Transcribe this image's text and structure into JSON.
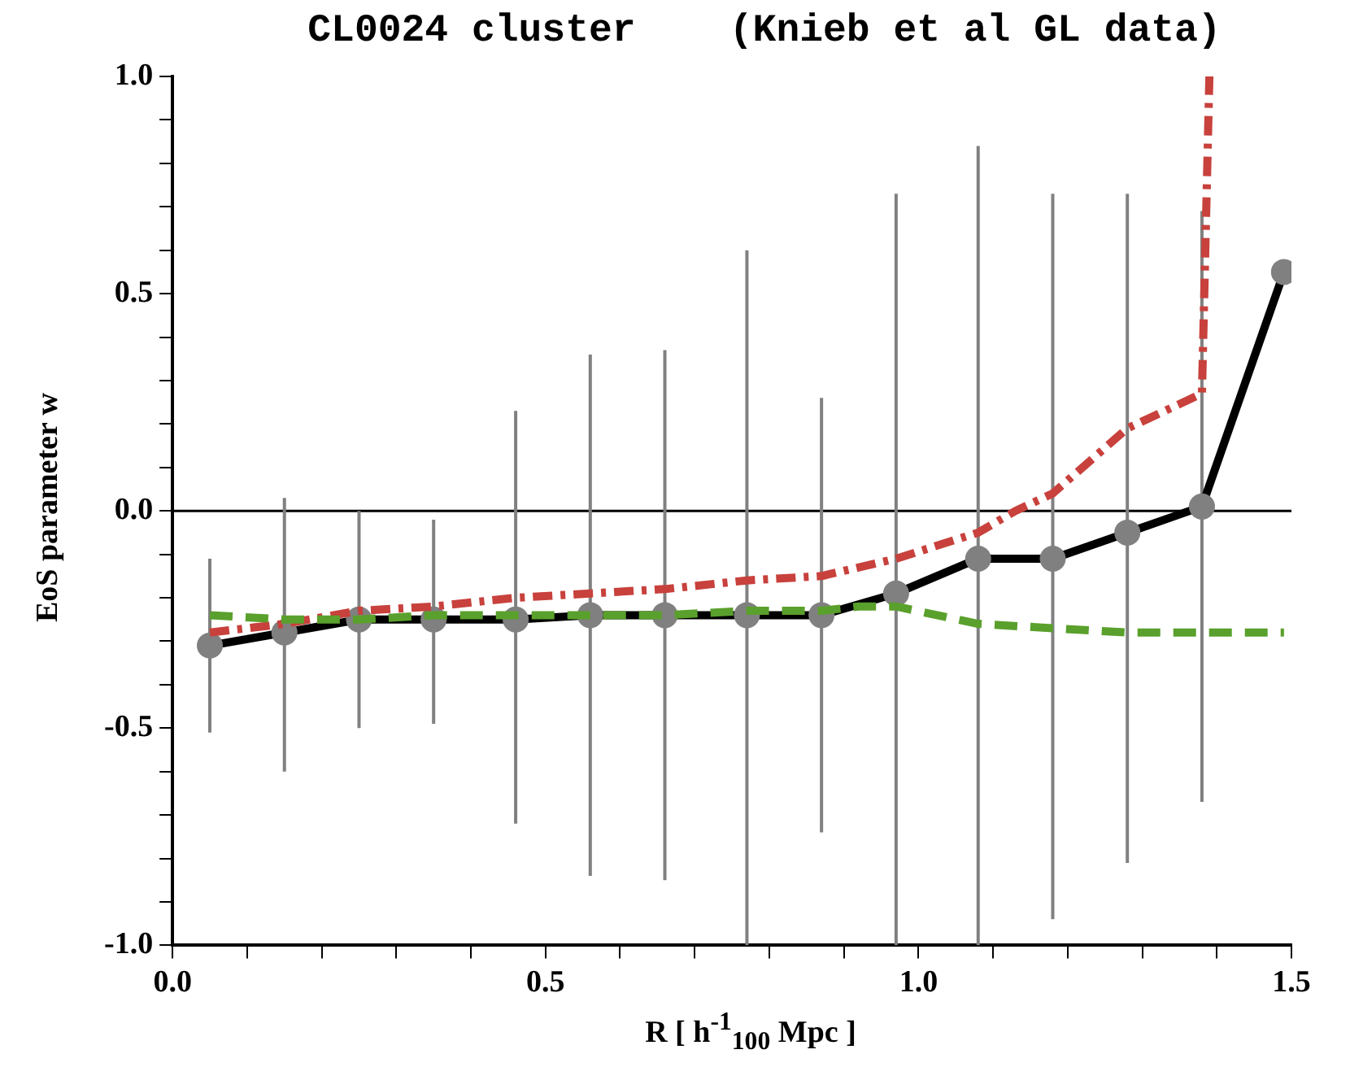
{
  "chart_data": {
    "type": "line",
    "title": "CL0024 cluster    (Knieb et al GL data)",
    "xlabel": "R [ h$^{-1}$$_{100}$ Mpc ]",
    "ylabel": "EoS parameter w",
    "xlim": [
      0,
      1.5
    ],
    "ylim": [
      -1,
      1
    ],
    "xticks": [
      {
        "value": 0,
        "label": "0.0"
      },
      {
        "value": 0.1,
        "label": null
      },
      {
        "value": 0.2,
        "label": null
      },
      {
        "value": 0.3,
        "label": null
      },
      {
        "value": 0.4,
        "label": null
      },
      {
        "value": 0.5,
        "label": "0.5"
      },
      {
        "value": 0.6,
        "label": null
      },
      {
        "value": 0.7,
        "label": null
      },
      {
        "value": 0.8,
        "label": null
      },
      {
        "value": 0.9,
        "label": null
      },
      {
        "value": 1,
        "label": "1.0"
      },
      {
        "value": 1.1,
        "label": null
      },
      {
        "value": 1.2,
        "label": null
      },
      {
        "value": 1.3,
        "label": null
      },
      {
        "value": 1.4,
        "label": null
      },
      {
        "value": 1.5,
        "label": "1.5"
      }
    ],
    "yticks": [
      {
        "value": -1,
        "label": "-1.0"
      },
      {
        "value": -0.9,
        "label": null
      },
      {
        "value": -0.8,
        "label": null
      },
      {
        "value": -0.7,
        "label": null
      },
      {
        "value": -0.6,
        "label": null
      },
      {
        "value": -0.5,
        "label": "-0.5"
      },
      {
        "value": -0.4,
        "label": null
      },
      {
        "value": -0.3,
        "label": null
      },
      {
        "value": -0.2,
        "label": null
      },
      {
        "value": -0.1,
        "label": null
      },
      {
        "value": 0,
        "label": "0.0"
      },
      {
        "value": 0.1,
        "label": null
      },
      {
        "value": 0.2,
        "label": null
      },
      {
        "value": 0.3,
        "label": null
      },
      {
        "value": 0.4,
        "label": null
      },
      {
        "value": 0.5,
        "label": "0.5"
      },
      {
        "value": 0.6,
        "label": null
      },
      {
        "value": 0.7,
        "label": null
      },
      {
        "value": 0.8,
        "label": null
      },
      {
        "value": 0.9,
        "label": null
      },
      {
        "value": 1,
        "label": "1.0"
      }
    ],
    "grid": false,
    "legend": false,
    "ref_lines": [
      {
        "axis": "y",
        "value": 0,
        "color": "#000000"
      }
    ],
    "series": [
      {
        "color": "#5aa02c",
        "line_style": "dashed",
        "marker": "none",
        "x": [
          0.05,
          0.15,
          0.25,
          0.35,
          0.46,
          0.56,
          0.66,
          0.77,
          0.87,
          0.92,
          0.97,
          1.08,
          1.18,
          1.28,
          1.38,
          1.49
        ],
        "values": [
          -0.24,
          -0.25,
          -0.25,
          -0.24,
          -0.24,
          -0.24,
          -0.24,
          -0.23,
          -0.23,
          -0.22,
          -0.22,
          -0.26,
          -0.27,
          -0.28,
          -0.28,
          -0.28
        ]
      },
      {
        "color": "#c8413c",
        "line_style": "dashdot",
        "marker": "none",
        "x": [
          0.05,
          0.15,
          0.25,
          0.35,
          0.46,
          0.56,
          0.66,
          0.77,
          0.87,
          0.97,
          1.08,
          1.13,
          1.18,
          1.28,
          1.38,
          1.39
        ],
        "values": [
          -0.28,
          -0.26,
          -0.23,
          -0.22,
          -0.2,
          -0.19,
          -0.18,
          -0.16,
          -0.15,
          -0.11,
          -0.05,
          0,
          0.04,
          0.19,
          0.27,
          1.0
        ]
      },
      {
        "color": "#000000",
        "line_style": "solid",
        "marker": "circle",
        "colors": [
          "#808080",
          "#808080",
          "#808080",
          "#808080",
          "#808080",
          "#808080",
          "#808080",
          "#808080",
          "#808080",
          "#808080",
          "#808080",
          "#808080",
          "#808080",
          "#808080",
          "#808080"
        ],
        "x": [
          0.05,
          0.15,
          0.25,
          0.35,
          0.46,
          0.56,
          0.66,
          0.77,
          0.87,
          0.97,
          1.08,
          1.18,
          1.28,
          1.38,
          1.49
        ],
        "values": [
          -0.31,
          -0.28,
          -0.25,
          -0.25,
          -0.25,
          -0.24,
          -0.24,
          -0.24,
          -0.24,
          -0.19,
          -0.11,
          -0.11,
          -0.05,
          0.01,
          0.55
        ],
        "errors": [
          [
            -0.51,
            -0.11
          ],
          [
            -0.6,
            0.03
          ],
          [
            -0.5,
            0.0
          ],
          [
            -0.49,
            -0.02
          ],
          [
            -0.72,
            0.23
          ],
          [
            -0.84,
            0.36
          ],
          [
            -0.85,
            0.37
          ],
          [
            -1.0,
            0.6
          ],
          [
            -0.74,
            0.26
          ],
          [
            -1.0,
            0.73
          ],
          [
            -1.0,
            0.84
          ],
          [
            -0.94,
            0.73
          ],
          [
            -0.81,
            0.73
          ],
          [
            -0.67,
            0.69
          ],
          null
        ]
      }
    ]
  }
}
